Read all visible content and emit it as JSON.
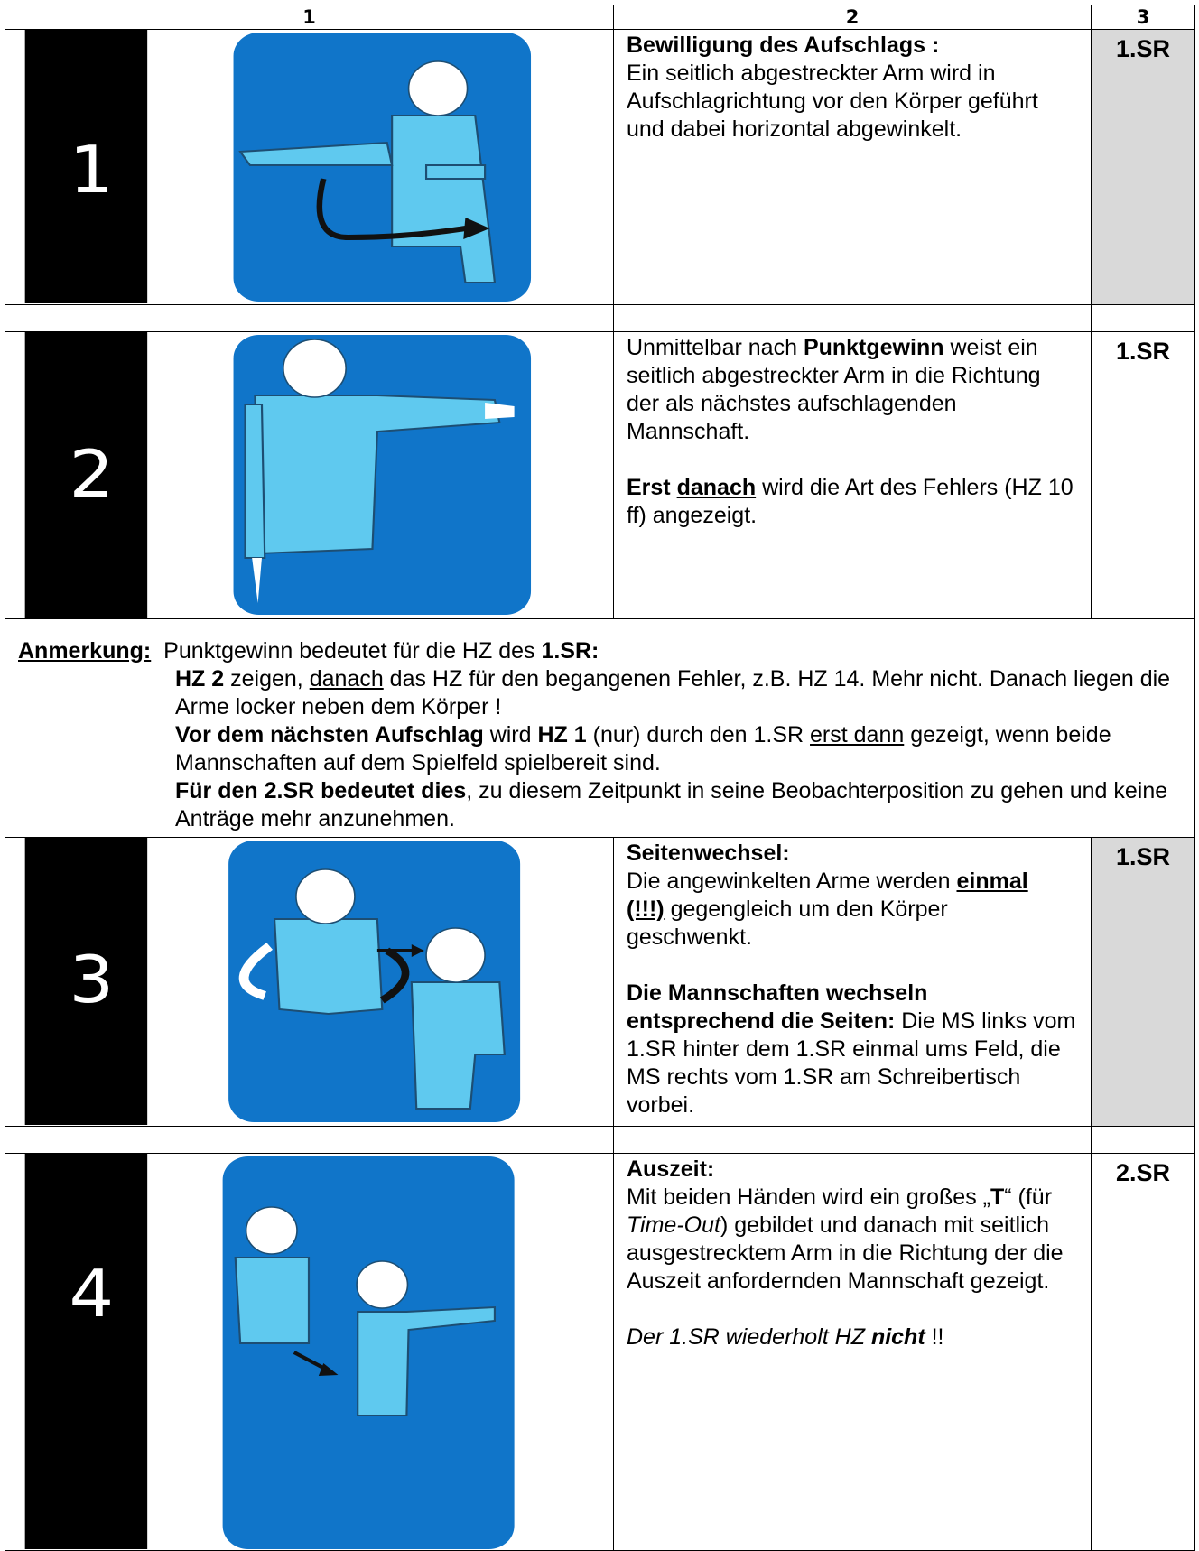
{
  "header": {
    "columns": [
      "1",
      "2",
      "3"
    ]
  },
  "rows": [
    {
      "number": "1",
      "text": [
        "Bewilligung des Aufschlags :",
        "Ein seitlich abgestreckter Arm wird in Aufschlagrichtung vor den Körper geführt und dabei horizontal abgewinkelt."
      ],
      "referee": "1.SR"
    },
    {
      "number": "2",
      "text": [
        "Unmittelbar nach ",
        "Punktgewinn",
        " weist ein seitlich abgestreckter Arm in die Richtung der als nächstes aufschlagenden Mannschaft.",
        "Erst ",
        "danach",
        " wird die Art des Fehlers (HZ 10 ff) angezeigt."
      ],
      "referee": "1.SR"
    },
    {
      "number": "3",
      "text": [
        "Seitenwechsel:",
        "Die angewinkelten Arme werden ",
        "einmal",
        "(!!!)",
        " gegengleich um den Körper geschwenkt.",
        "Die Mannschaften wechseln entsprechend die Seiten:",
        " Die MS links vom 1.SR hinter dem 1.SR einmal ums Feld, die MS rechts vom 1.SR am Schreibertisch vorbei."
      ],
      "referee": "1.SR"
    },
    {
      "number": "4",
      "text": [
        "Auszeit:",
        "Mit beiden Händen wird ein großes „",
        "T",
        "“ (für ",
        "Time-Out",
        ") gebildet und danach mit seitlich ausgestrecktem Arm in die Richtung der die Auszeit anfordernden Mannschaft gezeigt.",
        "Der 1.SR wiederholt HZ ",
        "nicht",
        " !!"
      ],
      "referee": "2.SR"
    }
  ],
  "note": {
    "label": "Anmerkung:",
    "text": [
      "Punktgewinn bedeutet für die HZ des ",
      "1.SR:",
      "HZ 2",
      " zeigen, ",
      "danach",
      " das HZ für den begangenen Fehler, z.B. HZ 14. Mehr nicht. Danach liegen die Arme locker neben dem Körper !",
      "Vor dem nächsten Aufschlag",
      " wird ",
      "HZ 1",
      " (nur) durch den 1.SR ",
      "erst dann",
      " gezeigt, wenn beide Mannschaften auf dem Spielfeld spielbereit sind.",
      "Für den 2.SR bedeutet dies",
      ", zu diesem Zeitpunkt in seine Beobachterposition zu gehen und keine Anträge mehr anzunehmen."
    ]
  }
}
